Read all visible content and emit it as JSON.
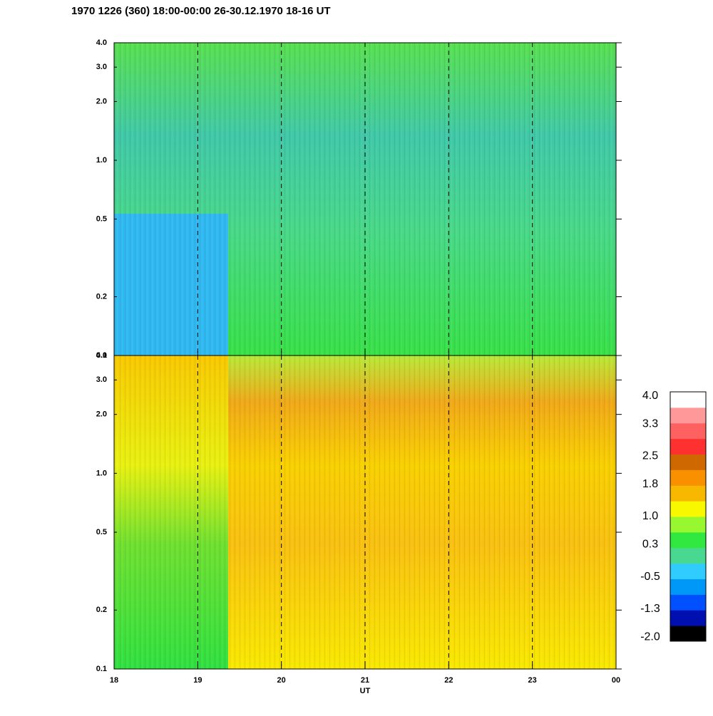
{
  "chart_data": [
    {
      "type": "heatmap",
      "title": "1970 1226 (360) 18:00-00:00 26-30.12.1970  18-16 UT",
      "ylim": [
        0.1,
        4.0
      ],
      "log_y": true,
      "yticks": [
        0.1,
        0.2,
        0.5,
        {
          "value": 1,
          "label": "1.0"
        },
        {
          "value": 2,
          "label": "2.0"
        },
        {
          "value": 3,
          "label": "3.0"
        },
        {
          "value": 4,
          "label": "4.0"
        }
      ],
      "xlim": [
        18,
        24
      ],
      "xticks": [
        18,
        19,
        20,
        21,
        22,
        23,
        {
          "value": 24,
          "label": "00"
        }
      ]
    },
    {
      "type": "heatmap",
      "xlabel": "UT",
      "ylim": [
        0.1,
        4.0
      ],
      "log_y": true,
      "yticks": [
        0.1,
        0.2,
        0.5,
        {
          "value": 1,
          "label": "1.0"
        },
        {
          "value": 2,
          "label": "2.0"
        },
        {
          "value": 3,
          "label": "3.0"
        },
        {
          "value": 4,
          "label": "4.0"
        }
      ],
      "xlim": [
        18,
        24
      ],
      "xticks": [
        18,
        19,
        20,
        21,
        22,
        23,
        {
          "value": 24,
          "label": "00"
        }
      ],
      "colorbar": {
        "clim": [
          -2.1,
          4.1
        ],
        "colors": [
          "#000000",
          "#0010b0",
          "#0050ff",
          "#0098f8",
          "#30ccff",
          "#48d890",
          "#30e840",
          "#98f830",
          "#f8f800",
          "#f8b800",
          "#f89000",
          "#d06800",
          "#ff3030",
          "#ff6060",
          "#ff9898",
          "#ffffff"
        ],
        "ticks": [
          {
            "value": 4,
            "label": "4.0"
          },
          3.3,
          2.5,
          1.8,
          {
            "value": 1,
            "label": "1.0"
          },
          0.3,
          -0.5,
          -1.3,
          {
            "value": -2,
            "label": "-2.0"
          }
        ]
      }
    }
  ]
}
